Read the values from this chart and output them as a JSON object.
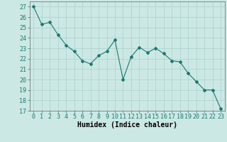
{
  "x": [
    0,
    1,
    2,
    3,
    4,
    5,
    6,
    7,
    8,
    9,
    10,
    11,
    12,
    13,
    14,
    15,
    16,
    17,
    18,
    19,
    20,
    21,
    22,
    23
  ],
  "y": [
    27,
    25.3,
    25.5,
    24.3,
    23.3,
    22.7,
    21.8,
    21.5,
    22.3,
    22.7,
    23.8,
    20.0,
    22.2,
    23.1,
    22.6,
    23.0,
    22.5,
    21.8,
    21.7,
    20.6,
    19.8,
    19.0,
    19.0,
    17.2
  ],
  "line_color": "#1a7a6e",
  "marker": "D",
  "marker_size": 2,
  "bg_color": "#cce8e4",
  "grid_color": "#aad0cc",
  "xlabel": "Humidex (Indice chaleur)",
  "ylim": [
    17,
    27.5
  ],
  "xlim": [
    -0.5,
    23.5
  ],
  "yticks": [
    17,
    18,
    19,
    20,
    21,
    22,
    23,
    24,
    25,
    26,
    27
  ],
  "xticks": [
    0,
    1,
    2,
    3,
    4,
    5,
    6,
    7,
    8,
    9,
    10,
    11,
    12,
    13,
    14,
    15,
    16,
    17,
    18,
    19,
    20,
    21,
    22,
    23
  ],
  "xlabel_fontsize": 7,
  "tick_fontsize": 6
}
